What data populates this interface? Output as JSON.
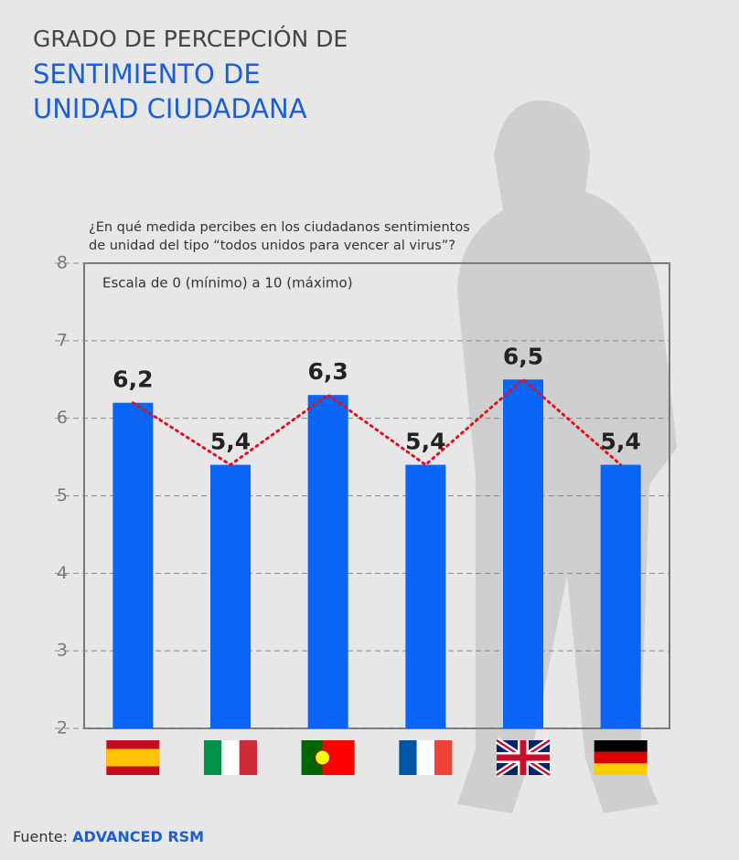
{
  "chart_data": {
    "type": "bar",
    "title": "GRADO DE PERCEPCIÓN DE",
    "subtitle": "SENTIMIENTO DE UNIDAD CIUDADANA",
    "annotations": [
      "¿En qué medida percibes en los ciudadanos sentimientos",
      "de unidad del tipo “todos unidos para vencer al virus”?",
      "Escala de 0 (mínimo) a 10 (máximo)"
    ],
    "source_label": "Fuente:",
    "source": "ADVANCED RSM",
    "categories": [
      null,
      null,
      null,
      null,
      null,
      null
    ],
    "values": [
      6.2,
      5.4,
      6.3,
      5.4,
      6.5,
      5.4
    ],
    "value_labels": [
      "6,2",
      "5,4",
      "6,3",
      "5,4",
      "6,5",
      "5,4"
    ],
    "color": "#0a64f5",
    "trend_color": "#e01020",
    "ylim": [
      2,
      8
    ],
    "yticks": [
      2,
      3,
      4,
      5,
      6,
      7,
      8
    ],
    "grid": true
  }
}
